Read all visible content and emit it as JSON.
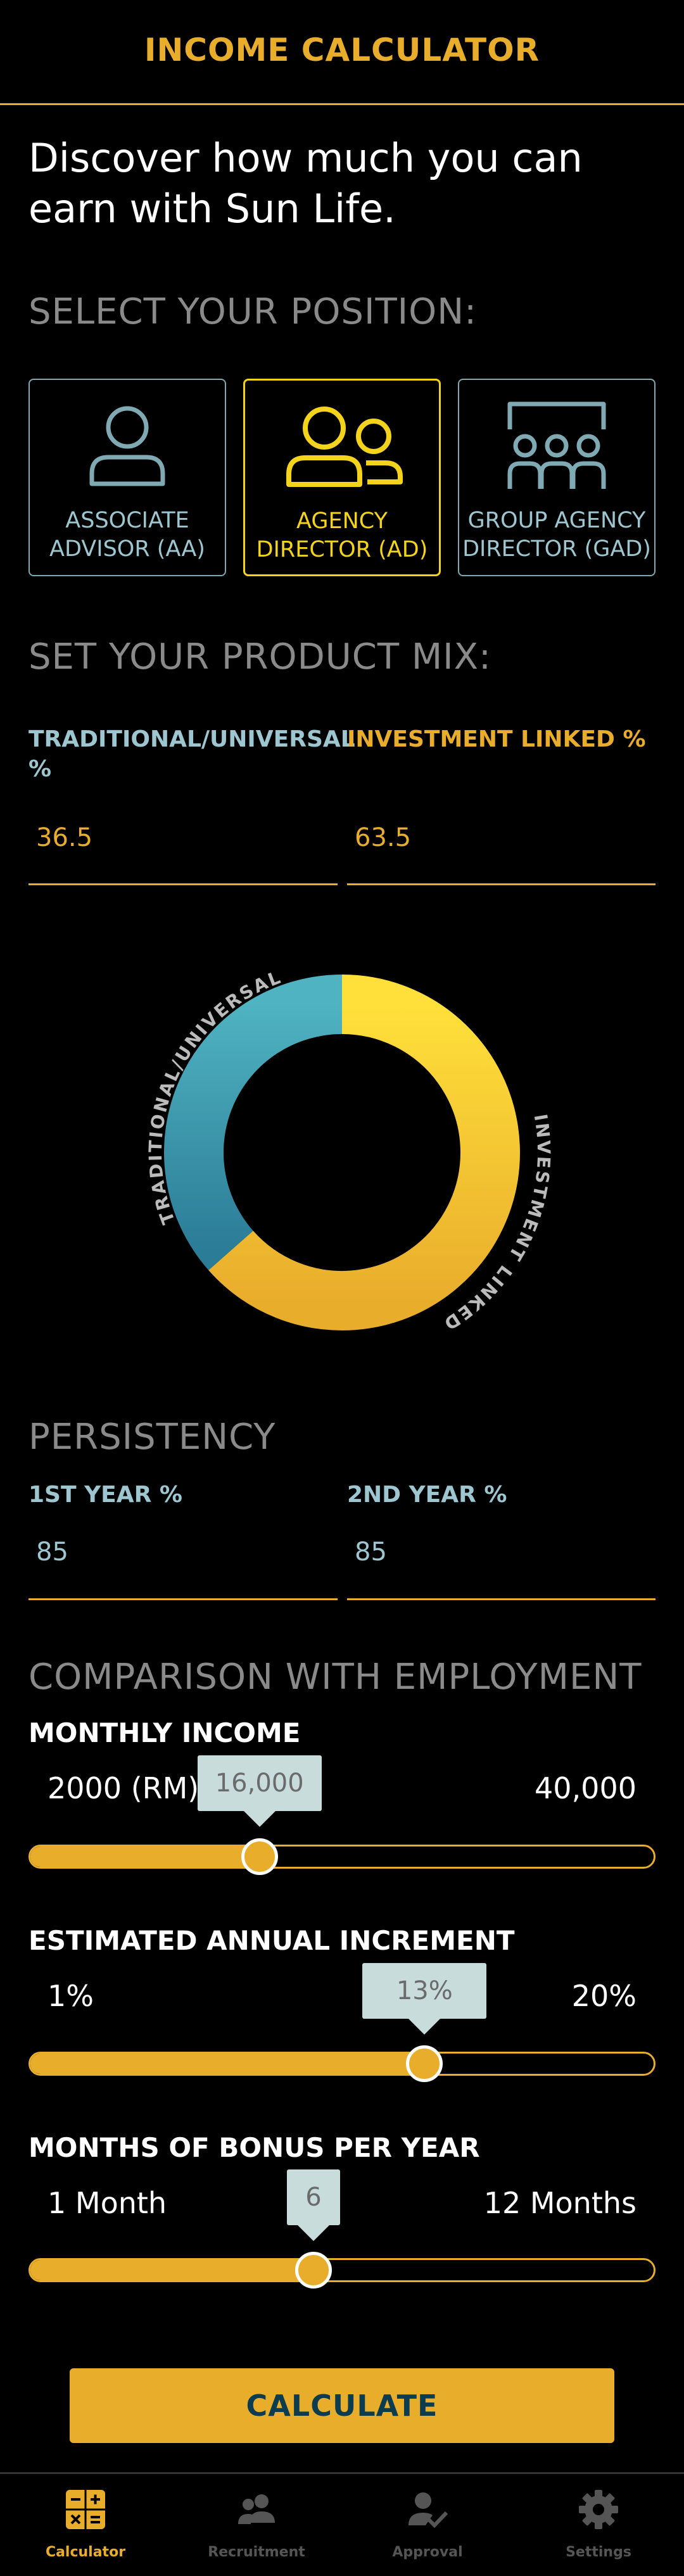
{
  "header": {
    "title": "INCOME CALCULATOR"
  },
  "intro": "Discover how much you can earn with Sun Life.",
  "position": {
    "title": "SELECT YOUR POSITION:",
    "options": [
      {
        "label": "ASSOCIATE ADVISOR (AA)",
        "icon": "single-person-icon",
        "selected": false
      },
      {
        "label": "AGENCY DIRECTOR (AD)",
        "icon": "two-people-icon",
        "selected": true
      },
      {
        "label": "GROUP AGENCY DIRECTOR (GAD)",
        "icon": "group-presentation-icon",
        "selected": false
      }
    ]
  },
  "product_mix": {
    "title": "SET YOUR PRODUCT MIX:",
    "traditional": {
      "label": "TRADITIONAL/UNIVERSAL %",
      "value": "36.5",
      "label_color": "#9dc6d0"
    },
    "investment": {
      "label": "INVESTMENT LINKED %",
      "value": "63.5",
      "label_color": "#e9ad2c"
    },
    "donut": {
      "traditional_label": "TRADITIONAL/UNIVERSAL",
      "investment_label": "INVESTMENT LINKED",
      "traditional_pct": 36.5,
      "investment_pct": 63.5,
      "traditional_colors": [
        "#2b7c97",
        "#4fb3c1"
      ],
      "investment_colors": [
        "#ffe03a",
        "#e9ad2c"
      ]
    }
  },
  "persistency": {
    "title": "PERSISTENCY",
    "first_year": {
      "label": "1ST YEAR %",
      "value": "85"
    },
    "second_year": {
      "label": "2ND YEAR %",
      "value": "85"
    }
  },
  "comparison": {
    "title": "COMPARISON WITH EMPLOYMENT",
    "sliders": [
      {
        "label": "MONTHLY INCOME",
        "min_label": "2000 (RM)",
        "max_label": "40,000",
        "value_label": "16,000",
        "position_fraction": 0.3684
      },
      {
        "label": "ESTIMATED ANNUAL INCREMENT",
        "min_label": "1%",
        "max_label": "20%",
        "value_label": "13%",
        "position_fraction": 0.6316
      },
      {
        "label": "MONTHS OF BONUS PER YEAR",
        "min_label": "1 Month",
        "max_label": "12 Months",
        "value_label": "6",
        "position_fraction": 0.4545
      }
    ]
  },
  "calculate_label": "CALCULATE",
  "nav": {
    "items": [
      {
        "label": "Calculator",
        "icon": "calculator-icon",
        "active": true
      },
      {
        "label": "Recruitment",
        "icon": "people-icon",
        "active": false
      },
      {
        "label": "Approval",
        "icon": "person-check-icon",
        "active": false
      },
      {
        "label": "Settings",
        "icon": "gear-icon",
        "active": false
      }
    ]
  },
  "colors": {
    "accent": "#e9ad2c",
    "highlight": "#f4d31c",
    "teal": "#9dc6d0",
    "background": "#000000"
  }
}
